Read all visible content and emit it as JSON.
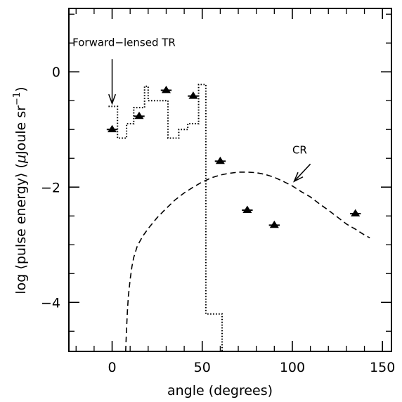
{
  "chart_data": {
    "type": "scatter",
    "xlabel": "angle (degrees)",
    "ylabel_prefix": "log ⟨pulse energy⟩ (",
    "ylabel_mu": "μ",
    "ylabel_unit": "Joule sr",
    "ylabel_exp": "−1",
    "ylabel_suffix": ")",
    "xlim": [
      -24,
      155
    ],
    "ylim": [
      -4.85,
      1.1
    ],
    "xticks_major": [
      0,
      50,
      100,
      150
    ],
    "xtick_labels": [
      "0",
      "50",
      "100",
      "150"
    ],
    "xticks_minor": [
      -20,
      -10,
      10,
      20,
      30,
      40,
      60,
      70,
      80,
      90,
      110,
      120,
      130,
      140
    ],
    "yticks_major": [
      0,
      -2,
      -4
    ],
    "ytick_labels": [
      "0",
      "−2",
      "−4"
    ],
    "yticks_minor": [
      1,
      0.5,
      -0.5,
      -1,
      -1.5,
      -2.5,
      -3,
      -3.5,
      -4.5
    ],
    "grid": false,
    "series": [
      {
        "kind": "points",
        "marker": "filled-triangle",
        "x": [
          0,
          15,
          30,
          45,
          60,
          75,
          90,
          135
        ],
        "y": [
          -1.0,
          -0.77,
          -0.32,
          -0.42,
          -1.55,
          -2.4,
          -2.66,
          -2.46
        ],
        "xerr": [
          3,
          3,
          3,
          3,
          3,
          3,
          3,
          3
        ]
      },
      {
        "kind": "step",
        "style": "dotted",
        "x": [
          -2,
          3,
          3,
          8,
          8,
          12,
          12,
          18,
          18,
          20,
          20,
          26,
          26,
          31,
          31,
          37,
          37,
          42,
          42,
          48,
          48,
          52,
          52,
          57,
          57,
          61,
          61
        ],
        "y": [
          -0.6,
          -0.6,
          -1.15,
          -1.15,
          -0.9,
          -0.9,
          -0.62,
          -0.62,
          -0.25,
          -0.25,
          -0.5,
          -0.5,
          -0.5,
          -0.5,
          -1.15,
          -1.15,
          -1.0,
          -1.0,
          -0.9,
          -0.9,
          -0.22,
          -0.22,
          -4.2,
          -4.2,
          -4.2,
          -4.2,
          -4.85
        ]
      },
      {
        "kind": "curve",
        "style": "dashed",
        "x": [
          7.5,
          8,
          8.5,
          9,
          10,
          11,
          12,
          14,
          17,
          20,
          25,
          30,
          35,
          40,
          45,
          50,
          55,
          60,
          65,
          70,
          75,
          80,
          85,
          90,
          95,
          100,
          105,
          110,
          115,
          120,
          125,
          130,
          135,
          140,
          143
        ],
        "y": [
          -4.85,
          -4.45,
          -4.15,
          -3.9,
          -3.6,
          -3.38,
          -3.22,
          -3.02,
          -2.85,
          -2.72,
          -2.53,
          -2.37,
          -2.22,
          -2.1,
          -2.0,
          -1.91,
          -1.84,
          -1.79,
          -1.76,
          -1.74,
          -1.74,
          -1.75,
          -1.78,
          -1.83,
          -1.9,
          -1.98,
          -2.08,
          -2.17,
          -2.29,
          -2.4,
          -2.52,
          -2.64,
          -2.73,
          -2.83,
          -2.88
        ]
      }
    ],
    "annotations": [
      {
        "text": "Forward−lensed TR",
        "x": -22,
        "y": 0.45,
        "arrow_to": [
          0,
          -0.55
        ],
        "arrow_from": [
          0,
          0.22
        ]
      },
      {
        "text": "CR",
        "x": 100,
        "y": -1.42,
        "arrow_to": [
          101,
          -1.9
        ],
        "arrow_from": [
          110,
          -1.6
        ]
      }
    ]
  }
}
